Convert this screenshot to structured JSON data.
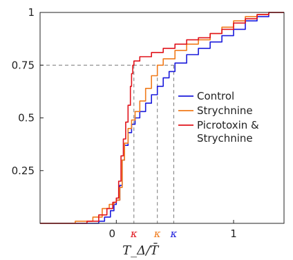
{
  "chart_data": {
    "type": "line",
    "title": "",
    "xlabel": "T_Δ/T̄",
    "ylabel": "",
    "xlim": [
      -0.65,
      1.43
    ],
    "ylim": [
      0,
      1
    ],
    "x_ticks": [
      {
        "value": 0,
        "label": "0"
      },
      {
        "value": 1,
        "label": "1"
      }
    ],
    "y_ticks": [
      {
        "value": 0.25,
        "label": "0.25"
      },
      {
        "value": 0.5,
        "label": "0.5"
      },
      {
        "value": 0.75,
        "label": "0.75"
      },
      {
        "value": 1,
        "label": "1"
      }
    ],
    "legend": {
      "placement": "center-right",
      "entries": [
        {
          "label": "Control",
          "color": "#1a1adb"
        },
        {
          "label": "Strychnine",
          "color": "#f07a1a"
        },
        {
          "label": "Picrotoxin &",
          "label_line2": "Strychnine",
          "color": "#e0121a"
        }
      ]
    },
    "reference_line_y": 0.75,
    "kappa_markers": [
      {
        "label": "κ",
        "x": 0.15,
        "color": "#e0121a"
      },
      {
        "label": "κ",
        "x": 0.35,
        "color": "#f07a1a"
      },
      {
        "label": "κ",
        "x": 0.49,
        "color": "#1a1adb"
      }
    ],
    "series": [
      {
        "name": "Control",
        "color": "#1a1adb",
        "x": [
          -0.65,
          -0.25,
          -0.15,
          -0.1,
          -0.05,
          -0.02,
          0.0,
          0.03,
          0.05,
          0.07,
          0.1,
          0.13,
          0.16,
          0.2,
          0.25,
          0.3,
          0.35,
          0.4,
          0.45,
          0.5,
          0.6,
          0.7,
          0.8,
          0.9,
          1.0,
          1.1,
          1.2,
          1.3,
          1.43
        ],
        "y": [
          0.0,
          0.0,
          0.01,
          0.03,
          0.06,
          0.09,
          0.11,
          0.18,
          0.3,
          0.37,
          0.43,
          0.47,
          0.5,
          0.53,
          0.57,
          0.61,
          0.65,
          0.69,
          0.72,
          0.76,
          0.8,
          0.83,
          0.86,
          0.89,
          0.92,
          0.96,
          0.98,
          1.0,
          1.0
        ]
      },
      {
        "name": "Strychnine",
        "color": "#f07a1a",
        "x": [
          -0.65,
          -0.35,
          -0.2,
          -0.12,
          -0.06,
          -0.02,
          0.0,
          0.03,
          0.05,
          0.07,
          0.1,
          0.13,
          0.16,
          0.2,
          0.25,
          0.3,
          0.35,
          0.4,
          0.5,
          0.6,
          0.7,
          0.8,
          0.9,
          1.0,
          1.1,
          1.2,
          1.3,
          1.43
        ],
        "y": [
          0.0,
          0.01,
          0.03,
          0.07,
          0.09,
          0.1,
          0.11,
          0.17,
          0.3,
          0.38,
          0.45,
          0.49,
          0.53,
          0.58,
          0.64,
          0.7,
          0.75,
          0.78,
          0.82,
          0.85,
          0.87,
          0.9,
          0.93,
          0.96,
          0.98,
          0.99,
          1.0,
          1.0
        ]
      },
      {
        "name": "Picrotoxin & Strychnine",
        "color": "#e0121a",
        "x": [
          -0.65,
          -0.25,
          -0.15,
          -0.08,
          -0.03,
          0.0,
          0.02,
          0.04,
          0.06,
          0.08,
          0.1,
          0.12,
          0.13,
          0.14,
          0.15,
          0.2,
          0.3,
          0.4,
          0.5,
          0.6,
          0.7,
          0.8,
          0.9,
          1.0,
          1.1,
          1.2,
          1.3,
          1.43
        ],
        "y": [
          0.0,
          0.01,
          0.04,
          0.07,
          0.1,
          0.12,
          0.2,
          0.32,
          0.4,
          0.48,
          0.56,
          0.65,
          0.71,
          0.75,
          0.77,
          0.79,
          0.81,
          0.83,
          0.85,
          0.87,
          0.88,
          0.9,
          0.92,
          0.95,
          0.97,
          0.99,
          1.0,
          1.0
        ]
      }
    ]
  }
}
